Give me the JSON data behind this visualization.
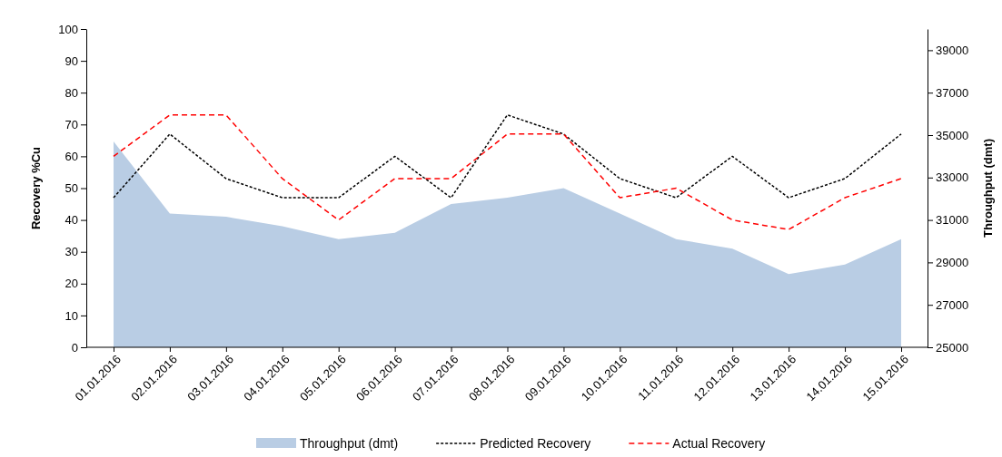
{
  "chart_data": {
    "type": "line",
    "ylabel": "Recovery %Cu",
    "y2label": "Throughput (dmt)",
    "categories": [
      "01.01.2016",
      "02.01.2016",
      "03.01.2016",
      "04.01.2016",
      "05.01.2016",
      "06.01.2016",
      "07.01.2016",
      "08.01.2016",
      "09.01.2016",
      "10.01.2016",
      "11.01.2016",
      "12.01.2016",
      "13.01.2016",
      "14.01.2016",
      "15.01.2016"
    ],
    "series": [
      {
        "name": "Throughput (dmt)",
        "type": "area",
        "axis": "y2",
        "color": "#b9cde4",
        "values": [
          34700,
          31300,
          31150,
          30700,
          30100,
          30400,
          31750,
          32050,
          32500,
          31300,
          30100,
          29650,
          28450,
          28900,
          30100
        ]
      },
      {
        "name": "Predicted Recovery",
        "color": "#000000",
        "line_style": "dotted",
        "values": [
          47,
          67,
          53,
          47,
          47,
          60,
          47,
          73,
          67,
          53,
          47,
          60,
          47,
          53,
          67
        ]
      },
      {
        "name": "Actual Recovery",
        "color": "#ff0000",
        "line_style": "dashed",
        "values": [
          60,
          73,
          73,
          53,
          40,
          53,
          53,
          67,
          67,
          47,
          50,
          40,
          37,
          47,
          53
        ]
      }
    ],
    "ylim": [
      0,
      100
    ],
    "yticks": [
      0,
      10,
      20,
      30,
      40,
      50,
      60,
      70,
      80,
      90,
      100
    ],
    "y2lim": [
      25000,
      40000
    ],
    "y2ticks": [
      25000,
      27000,
      29000,
      31000,
      33000,
      35000,
      37000,
      39000
    ],
    "legend": "bottom",
    "grid": false,
    "marker": "none"
  }
}
